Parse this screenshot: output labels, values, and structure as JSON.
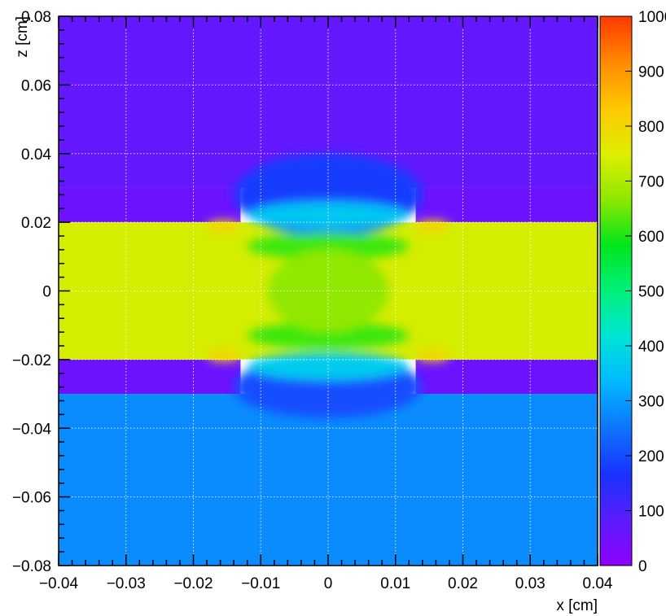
{
  "chart_data": {
    "type": "heatmap",
    "title": "",
    "xlabel": "x [cm]",
    "ylabel": "z [cm]",
    "xlim": [
      -0.04,
      0.04
    ],
    "ylim": [
      -0.08,
      0.08
    ],
    "zlim": [
      0,
      1000
    ],
    "grid": true,
    "x_ticks": [
      {
        "value": -0.04,
        "label": "−0.04"
      },
      {
        "value": -0.03,
        "label": "−0.03"
      },
      {
        "value": -0.02,
        "label": "−0.02"
      },
      {
        "value": -0.01,
        "label": "−0.01"
      },
      {
        "value": 0,
        "label": "0"
      },
      {
        "value": 0.01,
        "label": "0.01"
      },
      {
        "value": 0.02,
        "label": "0.02"
      },
      {
        "value": 0.03,
        "label": "0.03"
      },
      {
        "value": 0.04,
        "label": "0.04"
      }
    ],
    "y_ticks": [
      {
        "value": -0.08,
        "label": "−0.08"
      },
      {
        "value": -0.06,
        "label": "−0.06"
      },
      {
        "value": -0.04,
        "label": "−0.04"
      },
      {
        "value": -0.02,
        "label": "−0.02"
      },
      {
        "value": 0,
        "label": "0"
      },
      {
        "value": 0.02,
        "label": "0.02"
      },
      {
        "value": 0.04,
        "label": "0.04"
      },
      {
        "value": 0.06,
        "label": "0.06"
      },
      {
        "value": 0.08,
        "label": "0.08"
      }
    ],
    "colorbar": {
      "ticks": [
        {
          "value": 0,
          "label": "0"
        },
        {
          "value": 100,
          "label": "100"
        },
        {
          "value": 200,
          "label": "200"
        },
        {
          "value": 300,
          "label": "300"
        },
        {
          "value": 400,
          "label": "400"
        },
        {
          "value": 500,
          "label": "500"
        },
        {
          "value": 600,
          "label": "600"
        },
        {
          "value": 700,
          "label": "700"
        },
        {
          "value": 800,
          "label": "800"
        },
        {
          "value": 900,
          "label": "900"
        },
        {
          "value": 1000,
          "label": "1000"
        }
      ],
      "colors": [
        "#9000ff",
        "#5a1cff",
        "#1833ff",
        "#0f74ff",
        "#00b8ff",
        "#00e4d6",
        "#00f07a",
        "#00e61c",
        "#8ee800",
        "#dfee00",
        "#ffc800",
        "#ff8a00",
        "#ff3800"
      ]
    },
    "regions": [
      {
        "x0": -0.04,
        "x1": 0.04,
        "z0": 0.03,
        "z1": 0.08,
        "value": 70
      },
      {
        "x0": -0.04,
        "x1": -0.013,
        "z0": 0.02,
        "z1": 0.03,
        "value": 55
      },
      {
        "x0": 0.013,
        "x1": 0.04,
        "z0": 0.02,
        "z1": 0.03,
        "value": 55
      },
      {
        "x0": -0.04,
        "x1": -0.013,
        "z0": -0.03,
        "z1": -0.02,
        "value": 55
      },
      {
        "x0": 0.013,
        "x1": 0.04,
        "z0": -0.03,
        "z1": -0.02,
        "value": 55
      },
      {
        "x0": -0.04,
        "x1": 0.04,
        "z0": -0.08,
        "z1": -0.03,
        "value": 280
      },
      {
        "x0": -0.04,
        "x1": 0.04,
        "z0": -0.02,
        "z1": 0.02,
        "value": 740
      }
    ],
    "features": [
      {
        "cx": 0,
        "cz": 0.028,
        "rx": 0.014,
        "rz": 0.012,
        "value": 180
      },
      {
        "cx": 0,
        "cz": 0.022,
        "rx": 0.012,
        "rz": 0.004,
        "value": 360
      },
      {
        "cx": 0,
        "cz": -0.028,
        "rx": 0.014,
        "rz": 0.009,
        "value": 200
      },
      {
        "cx": 0,
        "cz": -0.022,
        "rx": 0.012,
        "rz": 0.004,
        "value": 370
      },
      {
        "cx": 0,
        "cz": 0.013,
        "rx": 0.012,
        "rz": 0.004,
        "value": 620
      },
      {
        "cx": 0,
        "cz": -0.013,
        "rx": 0.012,
        "rz": 0.004,
        "value": 620
      },
      {
        "cx": 0,
        "cz": 0,
        "rx": 0.009,
        "rz": 0.012,
        "value": 670
      },
      {
        "cx": -0.0155,
        "cz": 0.019,
        "rx": 0.0025,
        "rz": 0.0015,
        "value": 820
      },
      {
        "cx": 0.0155,
        "cz": 0.019,
        "rx": 0.0025,
        "rz": 0.0015,
        "value": 820
      },
      {
        "cx": -0.0155,
        "cz": -0.019,
        "rx": 0.0025,
        "rz": 0.0015,
        "value": 820
      },
      {
        "cx": 0.0155,
        "cz": -0.019,
        "rx": 0.0025,
        "rz": 0.0015,
        "value": 820
      }
    ]
  }
}
